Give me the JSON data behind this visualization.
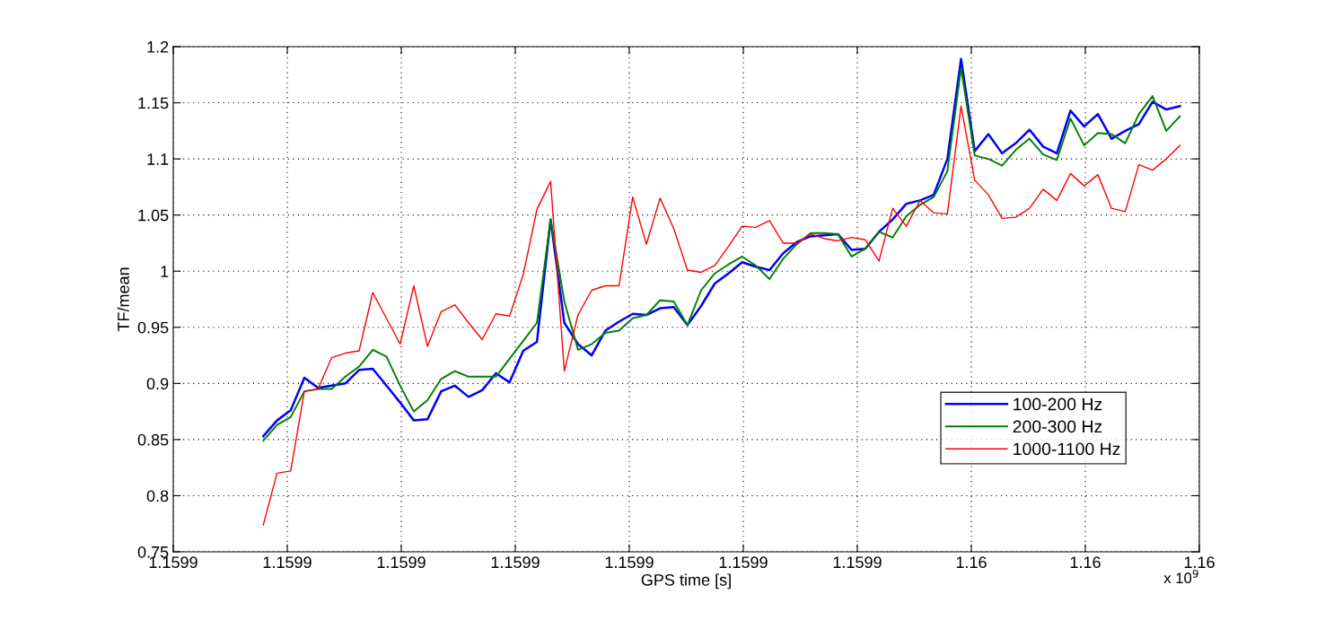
{
  "chart_data": {
    "type": "line",
    "xlabel": "GPS time [s]",
    "ylabel": "TF/mean",
    "x": [
      1.1598879,
      1.1598891,
      1.1598903,
      1.1598915,
      1.1598927,
      1.1598939,
      1.1598951,
      1.1598963,
      1.1598975,
      1.1598987,
      1.1598999,
      1.1599011,
      1.1599023,
      1.1599035,
      1.1599047,
      1.1599059,
      1.1599071,
      1.1599083,
      1.1599095,
      1.1599107,
      1.1599119,
      1.1599131,
      1.1599143,
      1.1599155,
      1.1599167,
      1.1599179,
      1.1599191,
      1.1599203,
      1.1599215,
      1.1599227,
      1.1599239,
      1.1599251,
      1.1599263,
      1.1599275,
      1.1599287,
      1.1599299,
      1.1599311,
      1.1599323,
      1.1599335,
      1.1599347,
      1.1599359,
      1.1599371,
      1.1599383,
      1.1599395,
      1.1599407,
      1.1599419,
      1.1599431,
      1.1599443,
      1.1599455,
      1.1599467,
      1.1599479,
      1.1599491,
      1.1599503,
      1.1599515,
      1.1599527,
      1.1599539,
      1.1599551,
      1.1599563,
      1.1599575,
      1.1599587,
      1.1599599,
      1.1599611,
      1.1599623,
      1.1599635,
      1.1599647,
      1.1599659,
      1.1599671,
      1.1599683
    ],
    "series": [
      {
        "name": "100-200 Hz",
        "color": "#0000ff",
        "values": [
          0.853,
          0.867,
          0.876,
          0.905,
          0.896,
          0.898,
          0.9,
          0.912,
          0.913,
          0.898,
          0.883,
          0.867,
          0.868,
          0.893,
          0.898,
          0.888,
          0.894,
          0.909,
          0.901,
          0.929,
          0.937,
          1.046,
          0.954,
          0.935,
          0.925,
          0.947,
          0.955,
          0.962,
          0.961,
          0.967,
          0.968,
          0.952,
          0.969,
          0.989,
          0.998,
          1.008,
          1.004,
          1.001,
          1.016,
          1.026,
          1.031,
          1.032,
          1.033,
          1.019,
          1.02,
          1.035,
          1.046,
          1.06,
          1.063,
          1.068,
          1.1,
          1.189,
          1.107,
          1.122,
          1.105,
          1.114,
          1.126,
          1.111,
          1.105,
          1.143,
          1.129,
          1.14,
          1.118,
          1.125,
          1.131,
          1.151,
          1.144,
          1.147
        ]
      },
      {
        "name": "200-300 Hz",
        "color": "#008000",
        "values": [
          0.849,
          0.863,
          0.87,
          0.893,
          0.895,
          0.895,
          0.906,
          0.915,
          0.93,
          0.924,
          0.898,
          0.875,
          0.885,
          0.904,
          0.911,
          0.906,
          0.906,
          0.906,
          0.922,
          0.938,
          0.954,
          1.046,
          0.973,
          0.93,
          0.935,
          0.945,
          0.947,
          0.958,
          0.961,
          0.974,
          0.973,
          0.952,
          0.983,
          0.998,
          1.006,
          1.013,
          1.005,
          0.993,
          1.011,
          1.024,
          1.034,
          1.034,
          1.033,
          1.013,
          1.02,
          1.035,
          1.03,
          1.049,
          1.059,
          1.066,
          1.089,
          1.181,
          1.103,
          1.1,
          1.094,
          1.108,
          1.118,
          1.104,
          1.099,
          1.136,
          1.112,
          1.123,
          1.122,
          1.114,
          1.14,
          1.156,
          1.125,
          1.138
        ]
      },
      {
        "name": "1000-1100 Hz",
        "color": "#ff0000",
        "values": [
          0.774,
          0.82,
          0.822,
          0.893,
          0.895,
          0.923,
          0.927,
          0.929,
          0.981,
          0.958,
          0.935,
          0.987,
          0.933,
          0.964,
          0.97,
          0.954,
          0.939,
          0.962,
          0.96,
          0.997,
          1.055,
          1.08,
          0.911,
          0.961,
          0.983,
          0.987,
          0.987,
          1.066,
          1.024,
          1.065,
          1.038,
          1.001,
          0.999,
          1.005,
          1.022,
          1.04,
          1.039,
          1.045,
          1.025,
          1.025,
          1.033,
          1.029,
          1.027,
          1.03,
          1.028,
          1.009,
          1.056,
          1.04,
          1.063,
          1.052,
          1.051,
          1.147,
          1.081,
          1.068,
          1.047,
          1.048,
          1.056,
          1.073,
          1.063,
          1.087,
          1.076,
          1.086,
          1.056,
          1.053,
          1.095,
          1.09,
          1.1,
          1.112
        ]
      }
    ],
    "xlim": [
      1.15988,
      1.15997
    ],
    "xticks": [
      {
        "value": 1.15988,
        "label": "1.1599"
      },
      {
        "value": 1.15989,
        "label": "1.1599"
      },
      {
        "value": 1.1599,
        "label": "1.1599"
      },
      {
        "value": 1.15991,
        "label": "1.1599"
      },
      {
        "value": 1.15992,
        "label": "1.1599"
      },
      {
        "value": 1.15993,
        "label": "1.1599"
      },
      {
        "value": 1.15994,
        "label": "1.1599"
      },
      {
        "value": 1.15995,
        "label": "1.16"
      },
      {
        "value": 1.15996,
        "label": "1.16"
      },
      {
        "value": 1.15997,
        "label": "1.16"
      }
    ],
    "ylim": [
      0.75,
      1.2
    ],
    "yticks": [
      0.75,
      0.8,
      0.85,
      0.9,
      0.95,
      1,
      1.05,
      1.1,
      1.15,
      1.2
    ],
    "annotations": [
      "x 10$^{9}$"
    ],
    "grid": true,
    "legend": "bottom right",
    "marker": "none",
    "line_style": "solid"
  }
}
